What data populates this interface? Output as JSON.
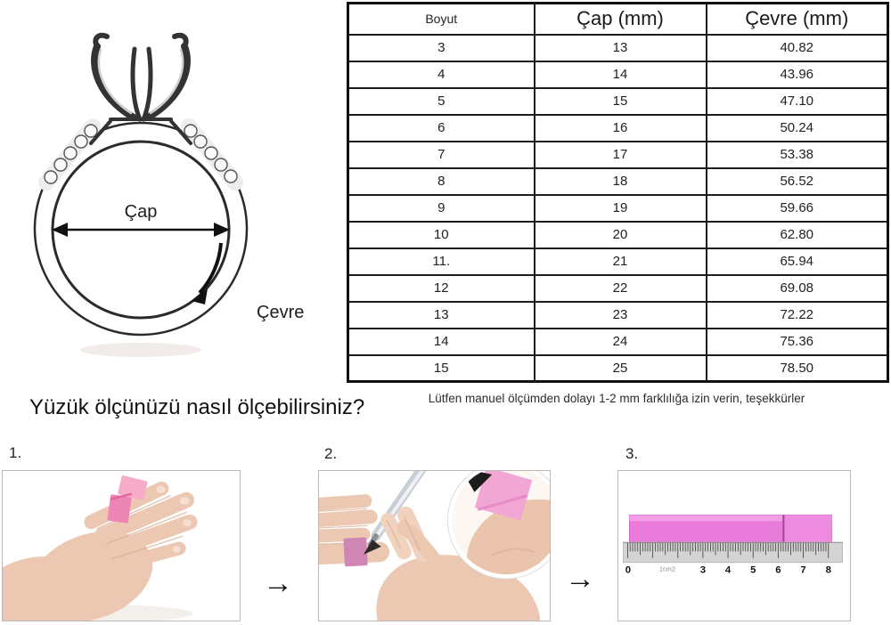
{
  "ring_diagram": {
    "diameter_label": "Çap",
    "circumference_label": "Çevre"
  },
  "size_table": {
    "headers": [
      "Boyut",
      "Çap (mm)",
      "Çevre (mm)"
    ],
    "rows": [
      [
        "3",
        "13",
        "40.82"
      ],
      [
        "4",
        "14",
        "43.96"
      ],
      [
        "5",
        "15",
        "47.10"
      ],
      [
        "6",
        "16",
        "50.24"
      ],
      [
        "7",
        "17",
        "53.38"
      ],
      [
        "8",
        "18",
        "56.52"
      ],
      [
        "9",
        "19",
        "59.66"
      ],
      [
        "10",
        "20",
        "62.80"
      ],
      [
        "11.",
        "21",
        "65.94"
      ],
      [
        "12",
        "22",
        "69.08"
      ],
      [
        "13",
        "23",
        "72.22"
      ],
      [
        "14",
        "24",
        "75.36"
      ],
      [
        "15",
        "25",
        "78.50"
      ]
    ]
  },
  "note": "Lütfen manuel ölçümden dolayı 1-2 mm farklılığa izin verin, teşekkürler",
  "how_to": {
    "heading": "Yüzük ölçünüzü nasıl ölçebilirsiniz?",
    "step_labels": [
      "1.",
      "2.",
      "3."
    ],
    "flow_arrow": "→",
    "ruler_labels": [
      "0",
      "1cm2",
      "3",
      "4",
      "5",
      "6",
      "7",
      "8"
    ]
  },
  "colors": {
    "strip_pink": "#e97bda",
    "wrap_pink": "#ee86b5",
    "table_border": "#1c1c1c"
  }
}
